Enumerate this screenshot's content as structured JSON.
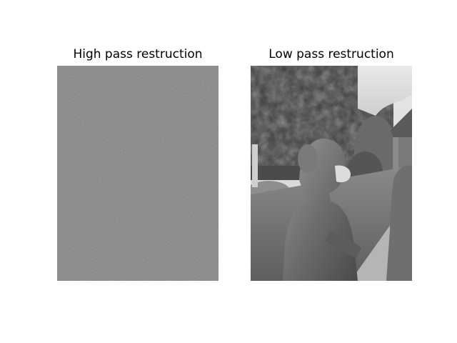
{
  "figure": {
    "panels": [
      {
        "title": "High pass restruction",
        "content": "high-frequency residual image (mid-gray with fine edge texture)"
      },
      {
        "title": "Low pass restruction",
        "content": "grayscale photo of a bronze statue of a masked girl in a park with trees"
      }
    ]
  }
}
